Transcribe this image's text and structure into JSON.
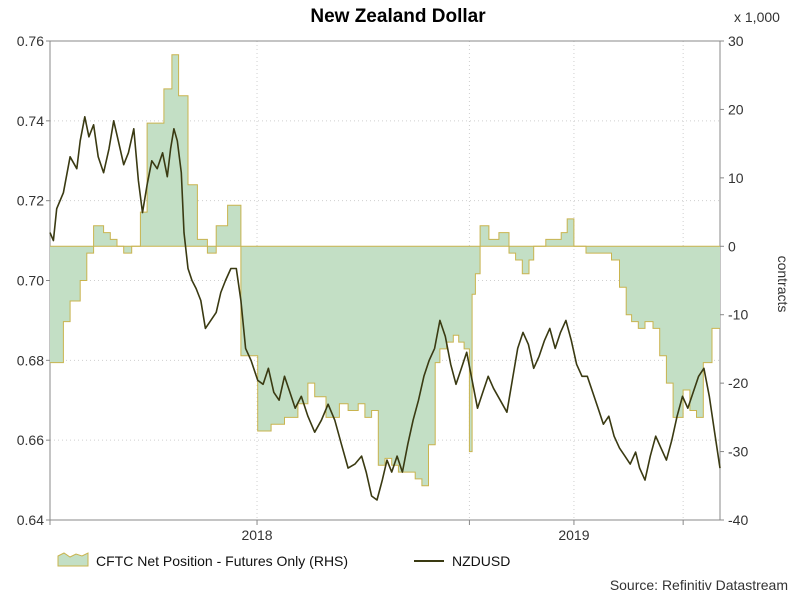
{
  "chart_data": {
    "type": "line",
    "title": "New Zealand Dollar",
    "source": "Source: Refinitiv Datastream",
    "y_left": {
      "ticks": [
        "0.64",
        "0.66",
        "0.68",
        "0.70",
        "0.72",
        "0.74",
        "0.76"
      ],
      "min": 0.64,
      "max": 0.76
    },
    "y_right": {
      "label": "contracts",
      "unit": "x 1,000",
      "ticks": [
        "-40",
        "-30",
        "-20",
        "-10",
        "0",
        "10",
        "20",
        "30"
      ],
      "min": -40,
      "max": 30
    },
    "x_axis": {
      "ticks": [
        {
          "label": "2018",
          "t": 0.309
        },
        {
          "label": "2019",
          "t": 0.782
        }
      ],
      "grid_t": [
        0.0,
        0.309,
        0.626,
        0.782,
        0.945
      ]
    },
    "grid": true,
    "legend": [
      {
        "name": "CFTC Net Position - Futures Only (RHS)",
        "type": "area",
        "color": "#c3dfc5",
        "edge": "#c9b44f"
      },
      {
        "name": "NZDUSD",
        "type": "line",
        "color": "#3a3a12"
      }
    ],
    "series": [
      {
        "name": "CFTC Net Position - Futures Only (RHS)",
        "axis": "right",
        "points": [
          [
            0.0,
            -17
          ],
          [
            0.02,
            -11
          ],
          [
            0.03,
            -8
          ],
          [
            0.045,
            -5
          ],
          [
            0.055,
            -1
          ],
          [
            0.065,
            3
          ],
          [
            0.08,
            2
          ],
          [
            0.09,
            1
          ],
          [
            0.1,
            0
          ],
          [
            0.11,
            -1
          ],
          [
            0.122,
            0
          ],
          [
            0.135,
            5
          ],
          [
            0.145,
            18
          ],
          [
            0.16,
            18
          ],
          [
            0.17,
            23
          ],
          [
            0.182,
            28
          ],
          [
            0.192,
            22
          ],
          [
            0.206,
            9
          ],
          [
            0.22,
            1
          ],
          [
            0.235,
            -1
          ],
          [
            0.248,
            3
          ],
          [
            0.265,
            6
          ],
          [
            0.285,
            -16
          ],
          [
            0.31,
            -27
          ],
          [
            0.33,
            -26
          ],
          [
            0.35,
            -25
          ],
          [
            0.37,
            -23
          ],
          [
            0.385,
            -20
          ],
          [
            0.395,
            -22
          ],
          [
            0.412,
            -25
          ],
          [
            0.432,
            -23
          ],
          [
            0.445,
            -24
          ],
          [
            0.452,
            -24
          ],
          [
            0.46,
            -23
          ],
          [
            0.47,
            -25
          ],
          [
            0.48,
            -24
          ],
          [
            0.49,
            -32
          ],
          [
            0.5,
            -31
          ],
          [
            0.51,
            -32
          ],
          [
            0.52,
            -33
          ],
          [
            0.532,
            -33
          ],
          [
            0.545,
            -34
          ],
          [
            0.555,
            -35
          ],
          [
            0.565,
            -29
          ],
          [
            0.575,
            -17
          ],
          [
            0.582,
            -15
          ],
          [
            0.592,
            -14
          ],
          [
            0.602,
            -13
          ],
          [
            0.61,
            -14
          ],
          [
            0.618,
            -15
          ],
          [
            0.626,
            -30
          ],
          [
            0.63,
            -7
          ],
          [
            0.635,
            -4
          ],
          [
            0.642,
            3
          ],
          [
            0.655,
            1
          ],
          [
            0.67,
            2
          ],
          [
            0.685,
            -1
          ],
          [
            0.695,
            -2
          ],
          [
            0.705,
            -4
          ],
          [
            0.715,
            -2
          ],
          [
            0.722,
            0
          ],
          [
            0.73,
            0
          ],
          [
            0.74,
            1
          ],
          [
            0.752,
            1
          ],
          [
            0.763,
            2
          ],
          [
            0.772,
            4
          ],
          [
            0.782,
            0
          ],
          [
            0.8,
            -1
          ],
          [
            0.812,
            -1
          ],
          [
            0.822,
            -1
          ],
          [
            0.838,
            -2
          ],
          [
            0.85,
            -6
          ],
          [
            0.86,
            -10
          ],
          [
            0.868,
            -11
          ],
          [
            0.878,
            -12
          ],
          [
            0.888,
            -11
          ],
          [
            0.9,
            -12
          ],
          [
            0.91,
            -16
          ],
          [
            0.92,
            -20
          ],
          [
            0.93,
            -25
          ],
          [
            0.945,
            -21
          ],
          [
            0.955,
            -24
          ],
          [
            0.965,
            -25
          ],
          [
            0.975,
            -17
          ],
          [
            0.988,
            -12
          ],
          [
            1.0,
            -12
          ]
        ]
      },
      {
        "name": "NZDUSD",
        "axis": "left",
        "points": [
          [
            0.0,
            0.712
          ],
          [
            0.005,
            0.71
          ],
          [
            0.01,
            0.718
          ],
          [
            0.02,
            0.722
          ],
          [
            0.03,
            0.731
          ],
          [
            0.04,
            0.728
          ],
          [
            0.045,
            0.735
          ],
          [
            0.052,
            0.741
          ],
          [
            0.058,
            0.736
          ],
          [
            0.065,
            0.739
          ],
          [
            0.072,
            0.731
          ],
          [
            0.08,
            0.727
          ],
          [
            0.088,
            0.733
          ],
          [
            0.095,
            0.74
          ],
          [
            0.102,
            0.735
          ],
          [
            0.11,
            0.729
          ],
          [
            0.117,
            0.732
          ],
          [
            0.125,
            0.738
          ],
          [
            0.132,
            0.725
          ],
          [
            0.138,
            0.717
          ],
          [
            0.145,
            0.724
          ],
          [
            0.152,
            0.73
          ],
          [
            0.16,
            0.728
          ],
          [
            0.168,
            0.732
          ],
          [
            0.175,
            0.726
          ],
          [
            0.18,
            0.733
          ],
          [
            0.185,
            0.738
          ],
          [
            0.19,
            0.735
          ],
          [
            0.196,
            0.727
          ],
          [
            0.2,
            0.712
          ],
          [
            0.206,
            0.703
          ],
          [
            0.212,
            0.7
          ],
          [
            0.218,
            0.698
          ],
          [
            0.225,
            0.695
          ],
          [
            0.232,
            0.688
          ],
          [
            0.24,
            0.69
          ],
          [
            0.248,
            0.692
          ],
          [
            0.255,
            0.697
          ],
          [
            0.262,
            0.7
          ],
          [
            0.27,
            0.703
          ],
          [
            0.278,
            0.703
          ],
          [
            0.285,
            0.695
          ],
          [
            0.292,
            0.683
          ],
          [
            0.3,
            0.68
          ],
          [
            0.31,
            0.675
          ],
          [
            0.318,
            0.674
          ],
          [
            0.326,
            0.678
          ],
          [
            0.334,
            0.672
          ],
          [
            0.342,
            0.67
          ],
          [
            0.35,
            0.676
          ],
          [
            0.358,
            0.672
          ],
          [
            0.366,
            0.668
          ],
          [
            0.375,
            0.671
          ],
          [
            0.385,
            0.666
          ],
          [
            0.395,
            0.662
          ],
          [
            0.405,
            0.665
          ],
          [
            0.415,
            0.669
          ],
          [
            0.425,
            0.665
          ],
          [
            0.435,
            0.659
          ],
          [
            0.445,
            0.653
          ],
          [
            0.455,
            0.654
          ],
          [
            0.465,
            0.656
          ],
          [
            0.472,
            0.652
          ],
          [
            0.48,
            0.646
          ],
          [
            0.488,
            0.645
          ],
          [
            0.496,
            0.65
          ],
          [
            0.503,
            0.655
          ],
          [
            0.51,
            0.652
          ],
          [
            0.518,
            0.656
          ],
          [
            0.526,
            0.652
          ],
          [
            0.534,
            0.659
          ],
          [
            0.542,
            0.665
          ],
          [
            0.55,
            0.67
          ],
          [
            0.558,
            0.676
          ],
          [
            0.566,
            0.68
          ],
          [
            0.574,
            0.683
          ],
          [
            0.582,
            0.69
          ],
          [
            0.59,
            0.686
          ],
          [
            0.598,
            0.679
          ],
          [
            0.606,
            0.674
          ],
          [
            0.614,
            0.678
          ],
          [
            0.622,
            0.682
          ],
          [
            0.63,
            0.675
          ],
          [
            0.638,
            0.668
          ],
          [
            0.646,
            0.672
          ],
          [
            0.654,
            0.676
          ],
          [
            0.662,
            0.673
          ],
          [
            0.672,
            0.67
          ],
          [
            0.682,
            0.667
          ],
          [
            0.69,
            0.675
          ],
          [
            0.698,
            0.683
          ],
          [
            0.706,
            0.687
          ],
          [
            0.714,
            0.684
          ],
          [
            0.722,
            0.678
          ],
          [
            0.73,
            0.681
          ],
          [
            0.738,
            0.685
          ],
          [
            0.746,
            0.688
          ],
          [
            0.754,
            0.683
          ],
          [
            0.762,
            0.687
          ],
          [
            0.77,
            0.69
          ],
          [
            0.778,
            0.685
          ],
          [
            0.786,
            0.679
          ],
          [
            0.794,
            0.676
          ],
          [
            0.802,
            0.676
          ],
          [
            0.81,
            0.672
          ],
          [
            0.818,
            0.668
          ],
          [
            0.826,
            0.664
          ],
          [
            0.834,
            0.666
          ],
          [
            0.842,
            0.661
          ],
          [
            0.85,
            0.658
          ],
          [
            0.858,
            0.656
          ],
          [
            0.866,
            0.654
          ],
          [
            0.874,
            0.657
          ],
          [
            0.88,
            0.653
          ],
          [
            0.888,
            0.65
          ],
          [
            0.896,
            0.656
          ],
          [
            0.904,
            0.661
          ],
          [
            0.912,
            0.658
          ],
          [
            0.92,
            0.655
          ],
          [
            0.928,
            0.66
          ],
          [
            0.936,
            0.666
          ],
          [
            0.944,
            0.671
          ],
          [
            0.952,
            0.668
          ],
          [
            0.96,
            0.672
          ],
          [
            0.968,
            0.676
          ],
          [
            0.976,
            0.678
          ],
          [
            0.984,
            0.671
          ],
          [
            0.992,
            0.662
          ],
          [
            1.0,
            0.653
          ]
        ]
      }
    ]
  }
}
